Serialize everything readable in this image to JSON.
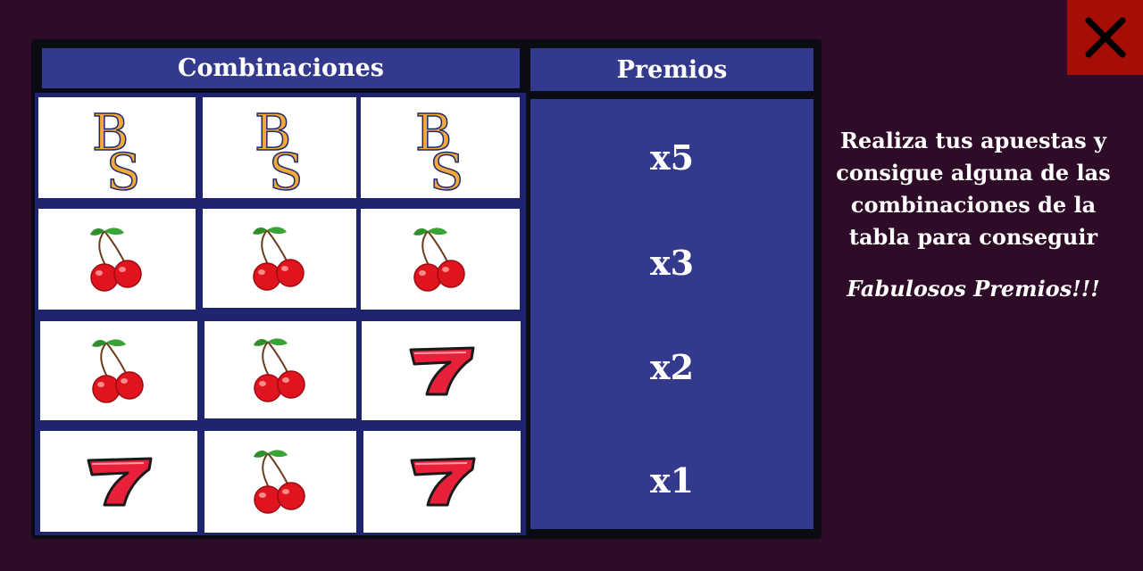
{
  "table": {
    "header_combinations": "Combinaciones",
    "header_prizes": "Premios",
    "rows": [
      {
        "symbols": [
          "bs-logo",
          "bs-logo",
          "bs-logo"
        ],
        "prize": "x5"
      },
      {
        "symbols": [
          "cherry",
          "cherry",
          "cherry"
        ],
        "prize": "x3"
      },
      {
        "symbols": [
          "cherry",
          "cherry",
          "seven"
        ],
        "prize": "x2"
      },
      {
        "symbols": [
          "seven",
          "cherry",
          "seven"
        ],
        "prize": "x1"
      }
    ]
  },
  "info": {
    "text": "Realiza tus apuestas y consigue alguna de las combinaciones de la tabla para conseguir",
    "highlight": "Fabulosos Premios!!!"
  },
  "close_button": {
    "icon": "close-icon"
  },
  "colors": {
    "background": "#2e0b27",
    "table_blue": "#33398d",
    "close_red": "#a50e06",
    "cherry_red": "#e0141e",
    "seven_red": "#e8203a",
    "logo_gold": "#f2a83a"
  }
}
